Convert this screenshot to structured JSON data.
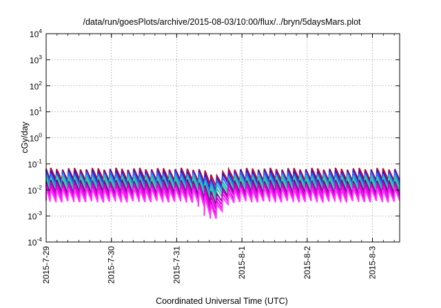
{
  "chart_data": {
    "type": "line",
    "title": "/data/run/goesPlots/archive/2015-08-03/10:00/flux/../bryn/5daysMars.plot",
    "xlabel": "Coordinated Universal Time (UTC)",
    "ylabel": "cGy/day",
    "yscale": "log",
    "ylim": [
      0.0001,
      10000
    ],
    "xlim": [
      "2015-07-29T00:00",
      "2015-08-03T10:00"
    ],
    "grid": true,
    "x_ticks": [
      "2015-7-29",
      "2015-7-30",
      "2015-7-31",
      "2015-8-1",
      "2015-8-2",
      "2015-8-3"
    ],
    "y_ticks": [
      {
        "base": "10",
        "exp": "-4",
        "value": 0.0001
      },
      {
        "base": "10",
        "exp": "-3",
        "value": 0.001
      },
      {
        "base": "10",
        "exp": "-2",
        "value": 0.01
      },
      {
        "base": "10",
        "exp": "-1",
        "value": 0.1
      },
      {
        "base": "10",
        "exp": "0",
        "value": 1
      },
      {
        "base": "10",
        "exp": "1",
        "value": 10
      },
      {
        "base": "10",
        "exp": "2",
        "value": 100
      },
      {
        "base": "10",
        "exp": "3",
        "value": 1000
      },
      {
        "base": "10",
        "exp": "4",
        "value": 10000
      }
    ],
    "sawtooth_cycles_per_day": 11,
    "dip": {
      "center": "2015-07-31T14:00",
      "min": 0.0009
    },
    "series": [
      {
        "color": "#cc0033",
        "peak": 0.065,
        "trough": 0.024
      },
      {
        "color": "#2222cc",
        "peak": 0.055,
        "trough": 0.019
      },
      {
        "color": "#3366ff",
        "peak": 0.045,
        "trough": 0.015
      },
      {
        "color": "#22bbbb",
        "peak": 0.036,
        "trough": 0.012
      },
      {
        "color": "#33cc99",
        "peak": 0.03,
        "trough": 0.01
      },
      {
        "color": "#880099",
        "peak": 0.023,
        "trough": 0.0075
      },
      {
        "color": "#cc00cc",
        "peak": 0.018,
        "trough": 0.006
      },
      {
        "color": "#ee00ee",
        "peak": 0.014,
        "trough": 0.0045
      },
      {
        "color": "#ff33ff",
        "peak": 0.011,
        "trough": 0.0036
      }
    ]
  }
}
